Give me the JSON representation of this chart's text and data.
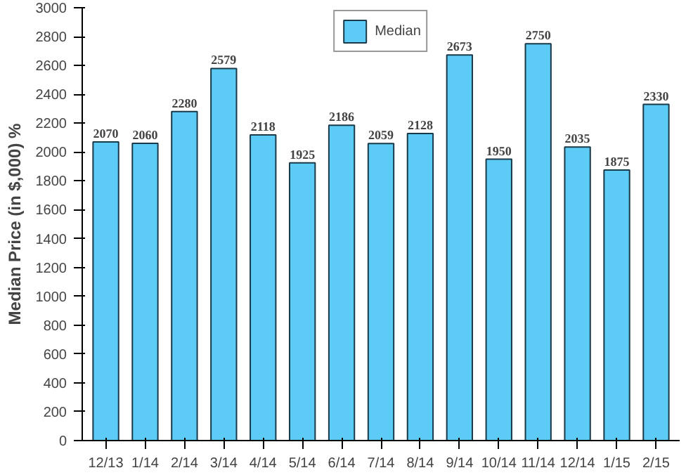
{
  "chart_data": {
    "type": "bar",
    "ylabel": "Median Price (in $,000) %",
    "categories": [
      "12/13",
      "1/14",
      "2/14",
      "3/14",
      "4/14",
      "5/14",
      "6/14",
      "7/14",
      "8/14",
      "9/14",
      "10/14",
      "11/14",
      "12/14",
      "1/15",
      "2/15"
    ],
    "series": [
      {
        "name": "Median",
        "color": "#5ccbf5",
        "values": [
          2070,
          2060,
          2280,
          2579,
          2118,
          1925,
          2186,
          2059,
          2128,
          2673,
          1950,
          2750,
          2035,
          1875,
          2330
        ]
      }
    ],
    "ylim": [
      0,
      3000
    ],
    "yticks": [
      0,
      200,
      400,
      600,
      800,
      1000,
      1200,
      1400,
      1600,
      1800,
      2000,
      2200,
      2400,
      2600,
      2800,
      3000
    ],
    "data_labels": true,
    "legend": "top",
    "grid": false
  }
}
